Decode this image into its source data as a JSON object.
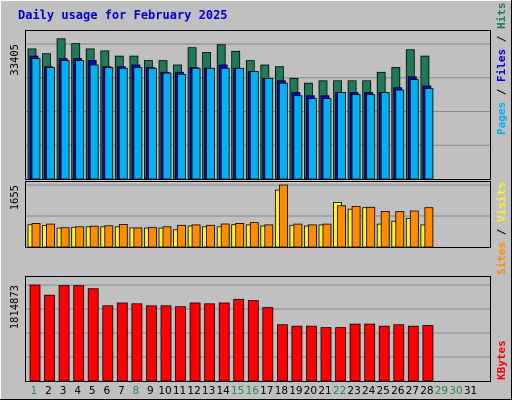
{
  "chart_data": {
    "type": "bar",
    "title": "Daily usage for February 2025",
    "days": [
      "1",
      "2",
      "3",
      "4",
      "5",
      "6",
      "7",
      "8",
      "9",
      "10",
      "11",
      "12",
      "13",
      "14",
      "15",
      "16",
      "17",
      "18",
      "19",
      "20",
      "21",
      "22",
      "23",
      "24",
      "25",
      "26",
      "27",
      "28",
      "29",
      "30",
      "31"
    ],
    "weekend_days": [
      1,
      8,
      15,
      16,
      22,
      29,
      30
    ],
    "colors": {
      "title": "#0000cc",
      "hits": "#1f7a5a",
      "files": "#0000cc",
      "pages": "#00b0f0",
      "visits": "#ffee33",
      "sites": "#ff8c00",
      "kbytes": "#ff0000",
      "weekend_label": "#1f8a4a",
      "weekday_label": "#000000"
    },
    "panels": [
      {
        "name": "hits-files-pages",
        "max_label": "33405",
        "max": 33405,
        "legend": [
          {
            "text": "Pages",
            "color": "#00b0f0"
          },
          {
            "text": " / ",
            "color": "#000000"
          },
          {
            "text": "Files",
            "color": "#0000cc"
          },
          {
            "text": " / ",
            "color": "#000000"
          },
          {
            "text": "Hits",
            "color": "#1f7a5a"
          }
        ],
        "series": [
          {
            "name": "Hits",
            "color": "#1f7a5a",
            "values": [
              32200,
              31000,
              34700,
              33500,
              32200,
              31700,
              30400,
              30400,
              29300,
              29300,
              28200,
              32500,
              31300,
              33200,
              31600,
              29300,
              28200,
              27800,
              24900,
              23700,
              24300,
              24300,
              24300,
              24300,
              26400,
              27600,
              32000,
              30400,
              0,
              0,
              0
            ]
          },
          {
            "name": "Files",
            "color": "#0000cc",
            "values": [
              30400,
              27800,
              29800,
              29800,
              29300,
              27800,
              27800,
              28200,
              27600,
              26400,
              26400,
              27600,
              27400,
              28200,
              27400,
              26600,
              24900,
              24300,
              21400,
              20600,
              20600,
              21400,
              21400,
              21400,
              21400,
              22600,
              25300,
              23000,
              0,
              0,
              0
            ]
          },
          {
            "name": "Pages",
            "color": "#00b0f0",
            "values": [
              29800,
              27600,
              29300,
              29300,
              28200,
              27600,
              27400,
              27600,
              27400,
              26200,
              25900,
              27400,
              27400,
              27400,
              27400,
              26600,
              24900,
              23700,
              20600,
              19900,
              19900,
              21400,
              20900,
              20900,
              21400,
              22000,
              24600,
              22400,
              0,
              0,
              0
            ]
          }
        ]
      },
      {
        "name": "visits-sites",
        "max_label": "1655",
        "max": 1655,
        "legend": [
          {
            "text": "Sites",
            "color": "#ff8c00"
          },
          {
            "text": " / ",
            "color": "#000000"
          },
          {
            "text": "Visits",
            "color": "#ffee33"
          }
        ],
        "series": [
          {
            "name": "Visits",
            "color": "#ffee33",
            "values": [
              595,
              570,
              505,
              525,
              540,
              540,
              540,
              510,
              505,
              505,
              460,
              560,
              540,
              540,
              595,
              590,
              560,
              1520,
              580,
              560,
              590,
              1190,
              1010,
              1050,
              610,
              690,
              760,
              590,
              0,
              0,
              0
            ]
          },
          {
            "name": "Sites",
            "color": "#ff8c00",
            "values": [
              630,
              610,
              515,
              540,
              555,
              565,
              600,
              510,
              525,
              540,
              580,
              590,
              580,
              615,
              630,
              650,
              590,
              1655,
              610,
              590,
              610,
              1100,
              1080,
              1060,
              950,
              950,
              960,
              1050,
              0,
              0,
              0
            ]
          }
        ]
      },
      {
        "name": "kbytes",
        "max_label": "1814873",
        "max": 1814873,
        "legend": [
          {
            "text": "KBytes",
            "color": "#ff0000"
          }
        ],
        "series": [
          {
            "name": "KBytes",
            "color": "#ff0000",
            "values": [
              1814873,
              1622000,
              1802000,
              1802000,
              1744000,
              1422000,
              1474000,
              1460000,
              1422000,
              1422000,
              1404000,
              1474000,
              1460000,
              1474000,
              1544000,
              1520000,
              1388000,
              1064000,
              1036000,
              1036000,
              1010000,
              1010000,
              1076000,
              1076000,
              1036000,
              1064000,
              1036000,
              1050000,
              0,
              0,
              0
            ]
          }
        ]
      }
    ]
  }
}
